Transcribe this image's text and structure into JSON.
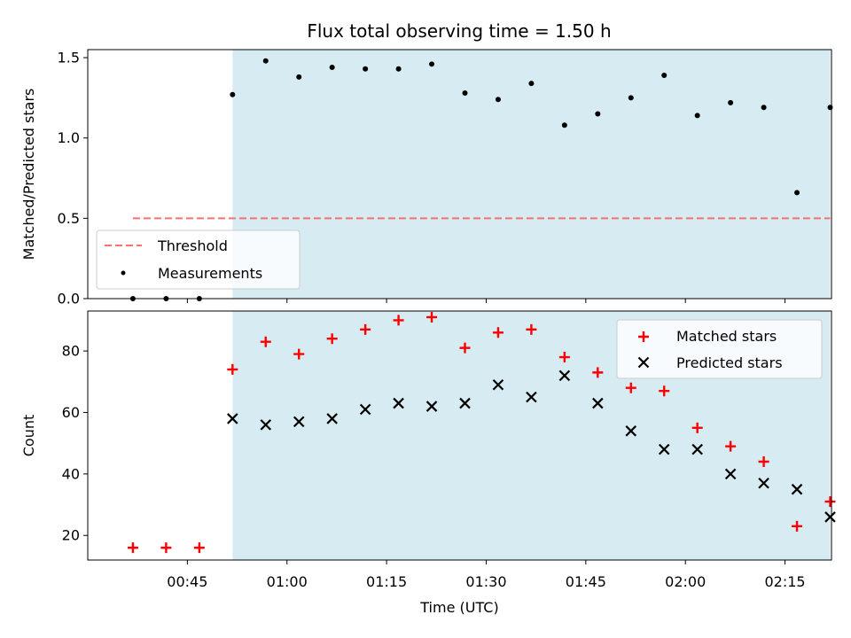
{
  "chart_data": {
    "title": "Flux total observing time = 1.50 h",
    "xlabel": "Time (UTC)",
    "x_ticks": [
      "00:45",
      "01:00",
      "01:15",
      "01:30",
      "01:45",
      "02:00",
      "02:15"
    ],
    "x_tick_minutes": [
      45,
      60,
      75,
      90,
      105,
      120,
      135
    ],
    "xlim_minutes": [
      30,
      142
    ],
    "shaded_interval_minutes": [
      51.8,
      141.8
    ],
    "colors": {
      "shade": "#add8e6",
      "threshold": "#f87272",
      "measurements": "#000000",
      "matched": "#ff0000",
      "predicted": "#000000"
    },
    "panels": [
      {
        "type": "scatter",
        "ylabel": "Matched/Predicted stars",
        "ylim": [
          0,
          1.55
        ],
        "y_ticks": [
          "0.0",
          "0.5",
          "1.0",
          "1.5"
        ],
        "y_tick_values": [
          0,
          0.5,
          1.0,
          1.5
        ],
        "legend_position": "lower-left",
        "threshold": {
          "name": "Threshold",
          "value": 0.5,
          "x_range_minutes": [
            36.8,
            141.8
          ]
        },
        "series": [
          {
            "name": "Measurements",
            "x_minutes": [
              36.8,
              41.8,
              46.8,
              51.8,
              56.8,
              61.8,
              66.8,
              71.8,
              76.8,
              81.8,
              86.8,
              91.8,
              96.8,
              101.8,
              106.8,
              111.8,
              116.8,
              121.8,
              126.8,
              131.8,
              136.8,
              141.8
            ],
            "values": [
              0,
              0,
              0,
              1.27,
              1.48,
              1.38,
              1.44,
              1.43,
              1.43,
              1.46,
              1.28,
              1.24,
              1.34,
              1.08,
              1.15,
              1.25,
              1.39,
              1.14,
              1.22,
              1.19,
              0.66,
              1.19
            ]
          }
        ]
      },
      {
        "type": "scatter",
        "ylabel": "Count",
        "ylim": [
          12,
          93
        ],
        "y_ticks": [
          "20",
          "40",
          "60",
          "80"
        ],
        "y_tick_values": [
          20,
          40,
          60,
          80
        ],
        "legend_position": "top-right",
        "series": [
          {
            "name": "Matched stars",
            "marker": "plus",
            "x_minutes": [
              36.8,
              41.8,
              46.8,
              51.8,
              56.8,
              61.8,
              66.8,
              71.8,
              76.8,
              81.8,
              86.8,
              91.8,
              96.8,
              101.8,
              106.8,
              111.8,
              116.8,
              121.8,
              126.8,
              131.8,
              136.8,
              141.8
            ],
            "values": [
              16,
              16,
              16,
              74,
              83,
              79,
              84,
              87,
              90,
              91,
              81,
              86,
              87,
              78,
              73,
              68,
              67,
              55,
              49,
              44,
              23,
              31
            ]
          },
          {
            "name": "Predicted stars",
            "marker": "x",
            "x_minutes": [
              51.8,
              56.8,
              61.8,
              66.8,
              71.8,
              76.8,
              81.8,
              86.8,
              91.8,
              96.8,
              101.8,
              106.8,
              111.8,
              116.8,
              121.8,
              126.8,
              131.8,
              136.8,
              141.8
            ],
            "values": [
              58,
              56,
              57,
              58,
              61,
              63,
              62,
              63,
              69,
              65,
              72,
              63,
              54,
              48,
              48,
              40,
              37,
              35,
              26
            ]
          }
        ]
      }
    ]
  }
}
